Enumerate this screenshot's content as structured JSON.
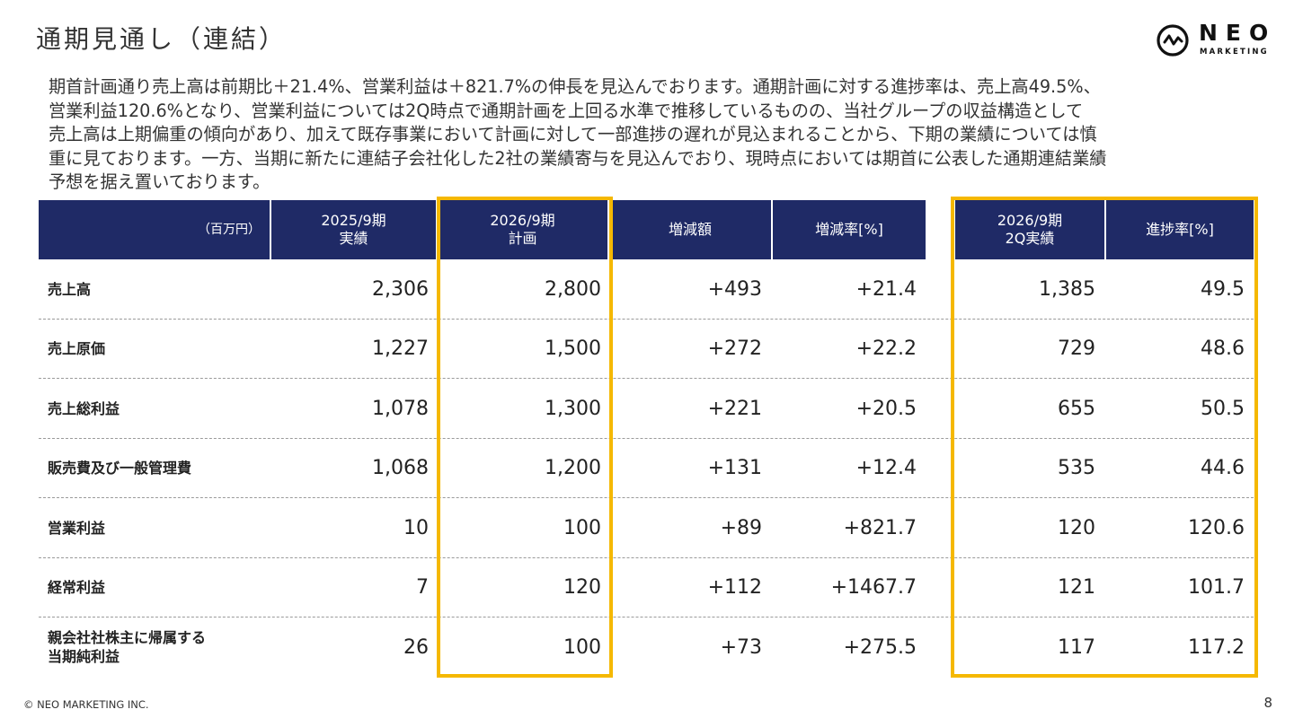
{
  "page": {
    "title": "通期見通し（連結）",
    "logo": {
      "brand": "NEO",
      "sub": "MARKETING"
    },
    "intro": "期首計画通り売上高は前期比＋21.4%、営業利益は＋821.7%の伸長を見込んでおります。通期計画に対する進捗率は、売上高49.5%、\n営業利益120.6%となり、営業利益については2Q時点で通期計画を上回る水準で推移しているものの、当社グループの収益構造として\n売上高は上期偏重の傾向があり、加えて既存事業において計画に対して一部進捗の遅れが見込まれることから、下期の業績については慎\n重に見ております。一方、当期に新たに連結子会社化した2社の業績寄与を見込んでおり、現時点においては期首に公表した通期連結業績\n予想を据え置いております。",
    "footer": {
      "copyright": "© NEO MARKETING INC.",
      "page_number": "8"
    },
    "colors": {
      "header_bg": "#1f2a66",
      "highlight": "#f5b800"
    }
  },
  "table": {
    "unit": "（百万円）",
    "columns": [
      "2025/9期\n実績",
      "2026/9期\n計画",
      "増減額",
      "増減率[%]",
      "2026/9期\n2Q実績",
      "進捗率[%]"
    ],
    "rows": [
      {
        "label": "売上高",
        "values": [
          "2,306",
          "2,800",
          "+493",
          "+21.4",
          "1,385",
          "49.5"
        ]
      },
      {
        "label": "売上原価",
        "values": [
          "1,227",
          "1,500",
          "+272",
          "+22.2",
          "729",
          "48.6"
        ]
      },
      {
        "label": "売上総利益",
        "values": [
          "1,078",
          "1,300",
          "+221",
          "+20.5",
          "655",
          "50.5"
        ]
      },
      {
        "label": "販売費及び一般管理費",
        "values": [
          "1,068",
          "1,200",
          "+131",
          "+12.4",
          "535",
          "44.6"
        ]
      },
      {
        "label": "営業利益",
        "values": [
          "10",
          "100",
          "+89",
          "+821.7",
          "120",
          "120.6"
        ]
      },
      {
        "label": "経常利益",
        "values": [
          "7",
          "120",
          "+112",
          "+1467.7",
          "121",
          "101.7"
        ]
      },
      {
        "label": "親会社社株主に帰属する\n当期純利益",
        "values": [
          "26",
          "100",
          "+73",
          "+275.5",
          "117",
          "117.2"
        ]
      }
    ]
  }
}
